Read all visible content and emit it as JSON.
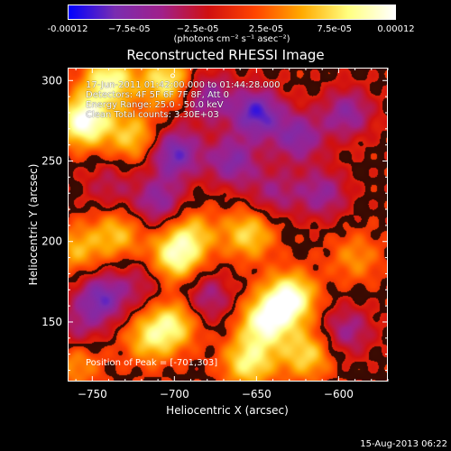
{
  "colorbar": {
    "tick_labels": [
      "-0.00012",
      "−7.5e-05",
      "−2.5e-05",
      "2.5e-05",
      "7.5e-05",
      "0.00012"
    ],
    "tick_values": [
      -0.00012,
      -7.5e-05,
      -2.5e-05,
      2.5e-05,
      7.5e-05,
      0.00012
    ],
    "range": [
      -0.00012,
      0.00012
    ],
    "units": "(photons cm⁻² s⁻¹ asec⁻²)",
    "colors": [
      "#0000ff",
      "#7a2db0",
      "#a0208a",
      "#d01010",
      "#ff4400",
      "#ffaa00",
      "#ffff80",
      "#ffffff"
    ]
  },
  "chart_data": {
    "type": "heatmap",
    "title": "Reconstructed RHESSI Image",
    "xlabel": "Heliocentric X (arcsec)",
    "ylabel": "Heliocentric Y (arcsec)",
    "xlim": [
      -765,
      -570
    ],
    "ylim": [
      113,
      308
    ],
    "xticks": [
      -750,
      -700,
      -650,
      -600
    ],
    "yticks": [
      150,
      200,
      250,
      300
    ],
    "peak_position": [
      -701,
      303
    ],
    "annotations": {
      "time_range": "17-Jun-2011 01:42:00.000 to 01:44:28.000",
      "detectors": "Detectors: 4F 5F 6F 7F 8F, Att 0",
      "energy": "Energy Range: 25.0 - 50.0 keV",
      "method": "Clean    Total counts: 3.30E+03",
      "peak": "Position of Peak = [-701,303]"
    },
    "blobs": [
      {
        "x": -755,
        "y": 275,
        "v": 1.0
      },
      {
        "x": -740,
        "y": 300,
        "v": 0.8
      },
      {
        "x": -705,
        "y": 300,
        "v": 0.7
      },
      {
        "x": -725,
        "y": 265,
        "v": 0.55
      },
      {
        "x": -760,
        "y": 195,
        "v": 0.45
      },
      {
        "x": -735,
        "y": 205,
        "v": 0.5
      },
      {
        "x": -700,
        "y": 190,
        "v": 0.75
      },
      {
        "x": -690,
        "y": 205,
        "v": 0.5
      },
      {
        "x": -655,
        "y": 205,
        "v": 0.6
      },
      {
        "x": -630,
        "y": 165,
        "v": 0.95
      },
      {
        "x": -645,
        "y": 150,
        "v": 0.85
      },
      {
        "x": -700,
        "y": 150,
        "v": 0.6
      },
      {
        "x": -715,
        "y": 140,
        "v": 0.55
      },
      {
        "x": -655,
        "y": 125,
        "v": 0.7
      },
      {
        "x": -620,
        "y": 130,
        "v": 0.6
      },
      {
        "x": -760,
        "y": 125,
        "v": 0.4
      },
      {
        "x": -590,
        "y": 190,
        "v": 0.35
      },
      {
        "x": -745,
        "y": 165,
        "v": -0.7
      },
      {
        "x": -680,
        "y": 290,
        "v": -0.55
      },
      {
        "x": -650,
        "y": 280,
        "v": -0.8
      },
      {
        "x": -665,
        "y": 250,
        "v": -0.6
      },
      {
        "x": -700,
        "y": 255,
        "v": -0.75
      },
      {
        "x": -710,
        "y": 225,
        "v": -0.55
      },
      {
        "x": -625,
        "y": 265,
        "v": -0.6
      },
      {
        "x": -595,
        "y": 280,
        "v": -0.55
      },
      {
        "x": -610,
        "y": 230,
        "v": -0.5
      },
      {
        "x": -640,
        "y": 230,
        "v": -0.4
      },
      {
        "x": -680,
        "y": 165,
        "v": -0.45
      },
      {
        "x": -595,
        "y": 145,
        "v": -0.45
      },
      {
        "x": -740,
        "y": 235,
        "v": -0.3
      },
      {
        "x": -720,
        "y": 175,
        "v": -0.3
      },
      {
        "x": -760,
        "y": 145,
        "v": -0.35
      }
    ]
  },
  "timestamp": "15-Aug-2013 06:22"
}
